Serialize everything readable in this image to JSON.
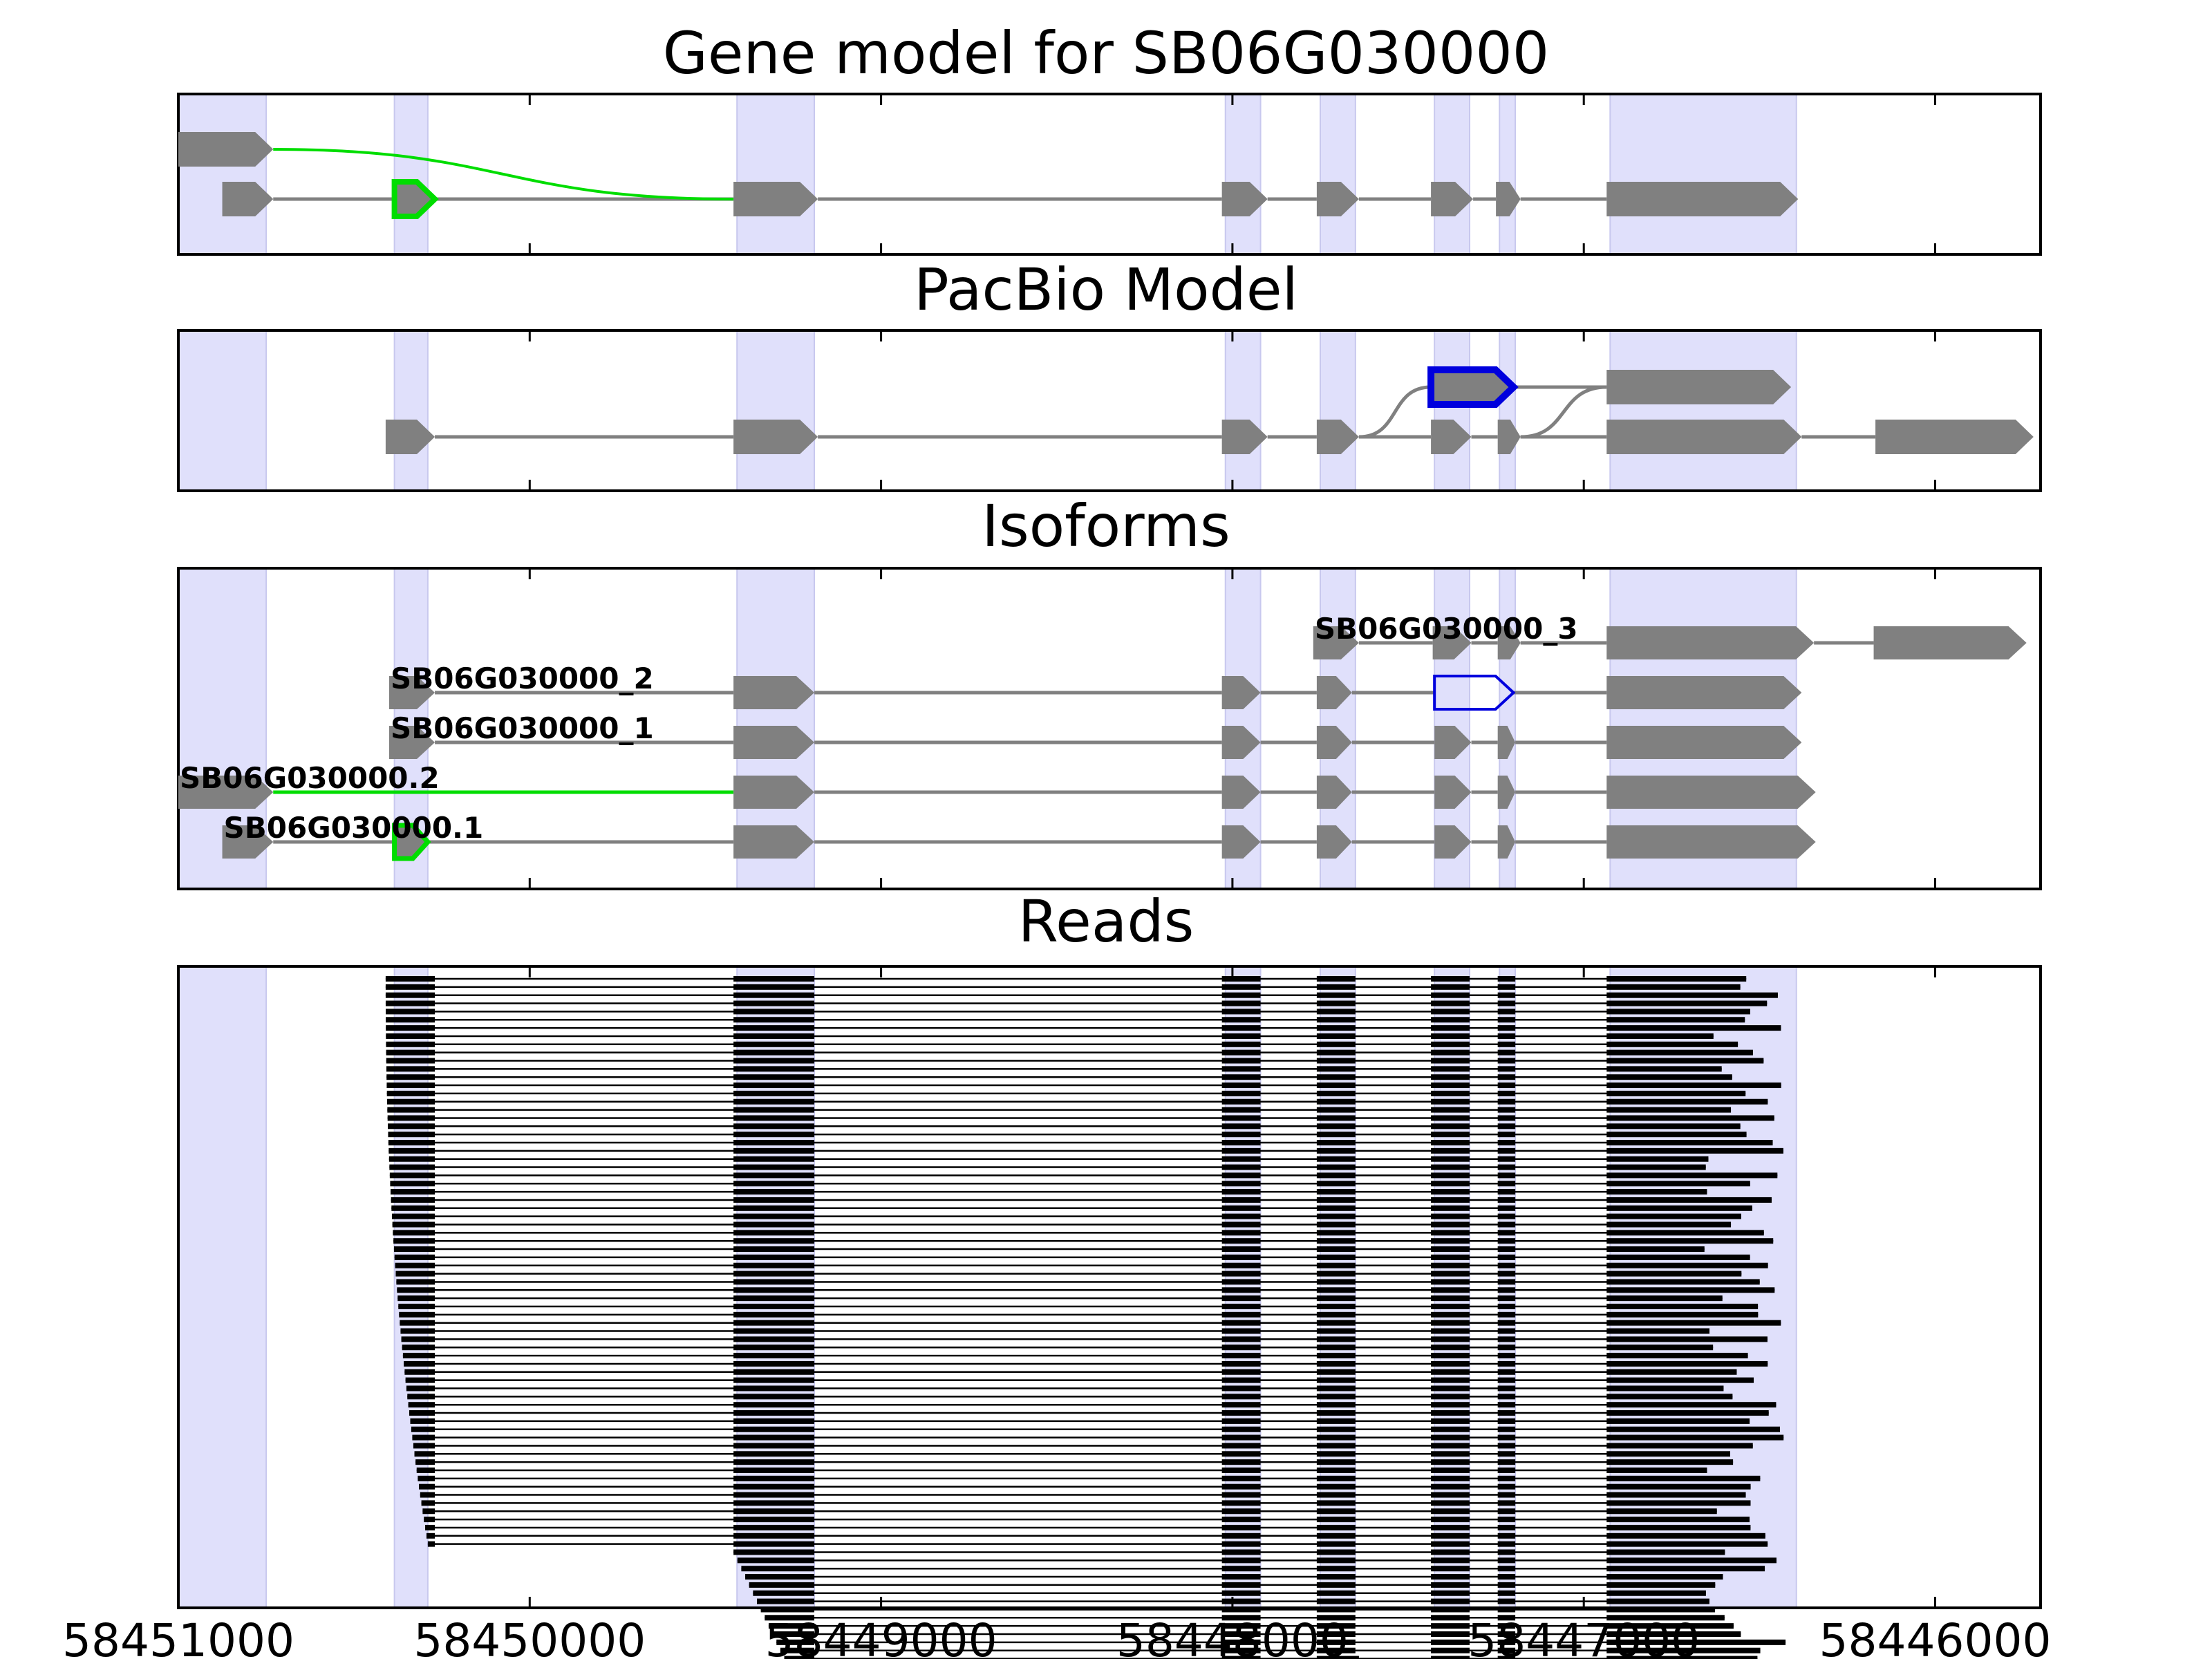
{
  "figure": {
    "colors": {
      "exon": "#808080",
      "intron": "#808080",
      "highlight_band": "#e0e0fb",
      "green": "#00dd00",
      "blue": "#0000dd",
      "read": "#000000"
    },
    "panels": {
      "gene_model": {
        "title": "Gene model for SB06G030000"
      },
      "pacbio": {
        "title": "PacBio Model"
      },
      "isoforms": {
        "title": "Isoforms"
      },
      "reads": {
        "title": "Reads"
      }
    }
  },
  "chart_data": {
    "type": "gene_structure",
    "x_axis": {
      "ticks": [
        58451000,
        58450000,
        58449000,
        58448000,
        58447000,
        58446000
      ],
      "tick_labels": [
        "58451000",
        "58450000",
        "58449000",
        "58448000",
        "58447000",
        "58446000"
      ],
      "range": [
        58451000,
        58445700
      ],
      "direction": "reversed"
    },
    "highlight_bands": [
      [
        58451000,
        58450750
      ],
      [
        58450385,
        58450290
      ],
      [
        58449410,
        58449190
      ],
      [
        58448020,
        58447920
      ],
      [
        58447750,
        58447650
      ],
      [
        58447425,
        58447325
      ],
      [
        58447240,
        58447195
      ],
      [
        58446925,
        58446395
      ]
    ],
    "gene_model": [
      {
        "exons": [
          [
            58451000,
            58450730
          ]
        ],
        "intron_color": "green",
        "bridge_to": 58449420
      },
      {
        "exons": [
          [
            58450875,
            58450730
          ],
          [
            58450385,
            58450270
          ],
          [
            58449420,
            58449180
          ],
          [
            58448030,
            58447900
          ],
          [
            58447760,
            58447640
          ],
          [
            58447435,
            58447315
          ],
          [
            58447250,
            58447180
          ],
          [
            58446935,
            58446390
          ]
        ],
        "highlight_exon": {
          "index": 1,
          "color": "green"
        }
      }
    ],
    "pacbio_model": [
      {
        "exons": [
          [
            58450410,
            58450270
          ],
          [
            58449420,
            58449180
          ],
          [
            58448030,
            58447900
          ],
          [
            58447760,
            58447640
          ],
          [
            58447435,
            58447320
          ],
          [
            58447245,
            58447180
          ],
          [
            58446935,
            58446380
          ],
          [
            58446170,
            58445720
          ]
        ],
        "connector_to_row0": {
          "from": 58447640,
          "to": 58447435,
          "return_from": 58447180,
          "return_to": 58446935
        }
      },
      {
        "exons": [
          [
            58447435,
            58447200
          ],
          [
            58446935,
            58446410
          ]
        ],
        "highlight_exon": {
          "index": 0,
          "color": "blue"
        }
      }
    ],
    "isoforms": [
      {
        "label": "SB06G030000_3",
        "exons": [
          [
            58447770,
            58447640
          ],
          [
            58447430,
            58447320
          ],
          [
            58447245,
            58447180
          ],
          [
            58446935,
            58446345
          ],
          [
            58446175,
            58445740
          ]
        ]
      },
      {
        "label": "SB06G030000_2",
        "exons": [
          [
            58450400,
            58450270
          ],
          [
            58449420,
            58449190
          ],
          [
            58448030,
            58447920
          ],
          [
            58447760,
            58447660
          ],
          [
            58447425,
            58447200
          ],
          [
            58446935,
            58446380
          ]
        ],
        "open_exon": {
          "index": 4,
          "color": "blue"
        }
      },
      {
        "label": "SB06G030000_1",
        "exons": [
          [
            58450400,
            58450270
          ],
          [
            58449420,
            58449190
          ],
          [
            58448030,
            58447920
          ],
          [
            58447760,
            58447660
          ],
          [
            58447425,
            58447320
          ],
          [
            58447245,
            58447195
          ],
          [
            58446935,
            58446380
          ]
        ]
      },
      {
        "label": "SB06G030000.2",
        "exons": [
          [
            58451000,
            58450730
          ],
          [
            58449420,
            58449190
          ],
          [
            58448030,
            58447920
          ],
          [
            58447760,
            58447660
          ],
          [
            58447425,
            58447320
          ],
          [
            58447245,
            58447195
          ],
          [
            58446935,
            58446340
          ]
        ],
        "intron_color_first": "green"
      },
      {
        "label": "SB06G030000.1",
        "exons": [
          [
            58450875,
            58450730
          ],
          [
            58450385,
            58450290
          ],
          [
            58449420,
            58449190
          ],
          [
            58448030,
            58447920
          ],
          [
            58447760,
            58447660
          ],
          [
            58447425,
            58447320
          ],
          [
            58447245,
            58447195
          ],
          [
            58446935,
            58446340
          ]
        ],
        "highlight_exon": {
          "index": 1,
          "color": "green"
        }
      }
    ],
    "reads_summary": {
      "count": 88,
      "full_length_count": 70,
      "first_exon_start_range": [
        58450410,
        58450290
      ],
      "second_exon_start_range": [
        58449420,
        58449190
      ],
      "exon_blocks": [
        [
          58448030,
          58447920
        ],
        [
          58447760,
          58447650
        ],
        [
          58447435,
          58447325
        ],
        [
          58447245,
          58447195
        ]
      ],
      "last_exon_start": 58446935,
      "last_exon_end_range": [
        58446660,
        58446420
      ]
    }
  }
}
